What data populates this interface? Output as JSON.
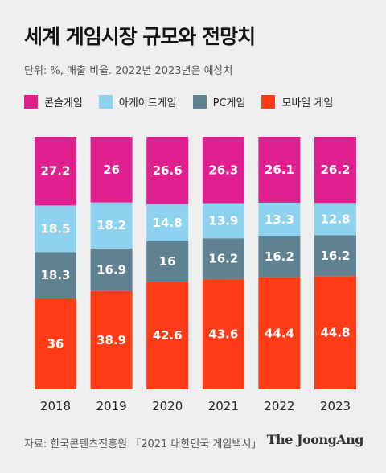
{
  "title": "세계 게임시장 규모와 전망치",
  "subtitle": "단위: %, 매출 비율. 2022년 2023년은 예상치",
  "source": "자료: 한국콘텐츠진흥원 「2021 대한민국 게임백서」",
  "brand": "The JoongAng",
  "colors": {
    "console": "#e0208f",
    "arcade": "#8ed2f0",
    "pc": "#5e8291",
    "mobile": "#ff3c17"
  },
  "chart_data": {
    "type": "bar",
    "stacked": true,
    "normalized_percent": true,
    "categories": [
      "2018",
      "2019",
      "2020",
      "2021",
      "2022",
      "2023"
    ],
    "series": [
      {
        "name": "모바일 게임",
        "color": "#ff3c17",
        "values": [
          36,
          38.9,
          42.6,
          43.6,
          44.4,
          44.8
        ]
      },
      {
        "name": "PC게임",
        "color": "#5e8291",
        "values": [
          18.3,
          16.9,
          16,
          16.2,
          16.2,
          16.2
        ]
      },
      {
        "name": "아케이드게임",
        "color": "#8ed2f0",
        "values": [
          18.5,
          18.2,
          14.8,
          13.9,
          13.3,
          12.8
        ]
      },
      {
        "name": "콘솔게임",
        "color": "#e0208f",
        "values": [
          27.2,
          26,
          26.6,
          26.3,
          26.1,
          26.2
        ]
      }
    ],
    "legend_order": [
      "콘솔게임",
      "아케이드게임",
      "PC게임",
      "모바일 게임"
    ],
    "value_labels": [
      [
        "36",
        "38.9",
        "42.6",
        "43.6",
        "44.4",
        "44.8"
      ],
      [
        "18.3",
        "16.9",
        "16",
        "16.2",
        "16.2",
        "16.2"
      ],
      [
        "18.5",
        "18.2",
        "14.8",
        "13.9",
        "13.3",
        "12.8"
      ],
      [
        "27.2",
        "26",
        "26.6",
        "26.3",
        "26.1",
        "26.2"
      ]
    ],
    "ylim": [
      0,
      100
    ],
    "grid": false,
    "legend_position": "top-left"
  }
}
